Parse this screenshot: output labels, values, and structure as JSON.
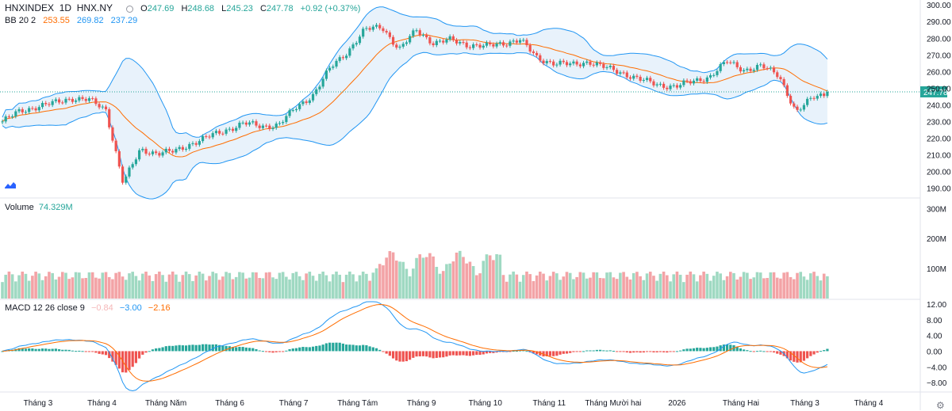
{
  "header": {
    "symbol": "HNXINDEX",
    "interval": "1D",
    "exchange": "HNX.NY",
    "open_label": "O",
    "open": "247.69",
    "high_label": "H",
    "high": "248.68",
    "low_label": "L",
    "low": "245.23",
    "close_label": "C",
    "close": "247.78",
    "change": "+0.92 (+0.37%)"
  },
  "bb": {
    "label": "BB 20 2",
    "basis": "253.55",
    "upper": "269.82",
    "lower": "237.29"
  },
  "volume": {
    "label": "Volume",
    "value": "74.329M"
  },
  "macd": {
    "label": "MACD 12 26 close 9",
    "hist": "−0.84",
    "macd": "−3.00",
    "signal": "−2.16"
  },
  "price_axis": [
    "300.00",
    "290.00",
    "280.00",
    "270.00",
    "260.00",
    "250.00",
    "240.00",
    "230.00",
    "220.00",
    "210.00",
    "200.00",
    "190.00"
  ],
  "last_price": "247.78",
  "volume_axis": [
    "300M",
    "200M",
    "100M"
  ],
  "macd_axis": [
    "12.00",
    "8.00",
    "4.00",
    "0.00",
    "−4.00",
    "−8.00"
  ],
  "time_axis": [
    "Tháng 3",
    "Tháng 4",
    "Tháng Năm",
    "Tháng 6",
    "Tháng 7",
    "Tháng Tám",
    "Tháng 9",
    "Tháng 10",
    "Tháng 11",
    "Tháng Mười hai",
    "2026",
    "Tháng Hai",
    "Tháng 3",
    "Tháng 4"
  ],
  "colors": {
    "up": "#26a69a",
    "down": "#ef5350",
    "vol_up": "#9fd9c2",
    "vol_down": "#f3a3a6",
    "bb_band": "#2196f3",
    "bb_basis": "#ff6d00",
    "bb_fill": "#e8f2fb",
    "macd_line": "#2196f3",
    "signal_line": "#ff6d00",
    "last_price_tag": "#26a69a"
  },
  "chart_data": {
    "type": "candlestick",
    "title": "HNXINDEX 1D HNX.NY",
    "ylim": [
      185,
      302
    ],
    "volume_ylim": [
      0,
      330
    ],
    "macd_ylim": [
      -10,
      13
    ],
    "anchors": [
      {
        "date": "Mar 2025",
        "close": 230
      },
      {
        "date": "Mar 2025",
        "close": 236
      },
      {
        "date": "Mar 2025",
        "close": 239
      },
      {
        "date": "Mar 2025",
        "close": 241
      },
      {
        "date": "Mar 2025",
        "close": 244
      },
      {
        "date": "Apr 2025",
        "close": 243
      },
      {
        "date": "Apr 2025",
        "close": 237
      },
      {
        "date": "Apr 2025",
        "close": 193
      },
      {
        "date": "Apr 2025",
        "close": 213
      },
      {
        "date": "Apr 2025",
        "close": 211
      },
      {
        "date": "May 2025",
        "close": 212
      },
      {
        "date": "May 2025",
        "close": 217
      },
      {
        "date": "May 2025",
        "close": 221
      },
      {
        "date": "Jun 2025",
        "close": 225
      },
      {
        "date": "Jun 2025",
        "close": 229
      },
      {
        "date": "Jun 2025",
        "close": 227
      },
      {
        "date": "Jul 2025",
        "close": 228
      },
      {
        "date": "Jul 2025",
        "close": 238
      },
      {
        "date": "Jul 2025",
        "close": 246
      },
      {
        "date": "Jul 2025",
        "close": 262
      },
      {
        "date": "Aug 2025",
        "close": 272
      },
      {
        "date": "Aug 2025",
        "close": 285
      },
      {
        "date": "Aug 2025",
        "close": 287
      },
      {
        "date": "Aug 2025",
        "close": 273
      },
      {
        "date": "Aug 2025",
        "close": 285
      },
      {
        "date": "Sep 2025",
        "close": 277
      },
      {
        "date": "Sep 2025",
        "close": 279
      },
      {
        "date": "Sep 2025",
        "close": 276
      },
      {
        "date": "Oct 2025",
        "close": 275
      },
      {
        "date": "Oct 2025",
        "close": 277
      },
      {
        "date": "Oct 2025",
        "close": 279
      },
      {
        "date": "Oct 2025",
        "close": 268
      },
      {
        "date": "Nov 2025",
        "close": 265
      },
      {
        "date": "Nov 2025",
        "close": 264
      },
      {
        "date": "Nov 2025",
        "close": 266
      },
      {
        "date": "Nov 2025",
        "close": 262
      },
      {
        "date": "Dec 2025",
        "close": 259
      },
      {
        "date": "Dec 2025",
        "close": 255
      },
      {
        "date": "Dec 2025",
        "close": 252
      },
      {
        "date": "Jan 2026",
        "close": 251
      },
      {
        "date": "Jan 2026",
        "close": 254
      },
      {
        "date": "Jan 2026",
        "close": 257
      },
      {
        "date": "Feb 2026",
        "close": 266
      },
      {
        "date": "Feb 2026",
        "close": 261
      },
      {
        "date": "Feb 2026",
        "close": 263
      },
      {
        "date": "Mar 2026",
        "close": 258
      },
      {
        "date": "Mar 2026",
        "close": 235
      },
      {
        "date": "Mar 2026",
        "close": 245
      },
      {
        "date": "Mar 2026",
        "close": 247.78
      }
    ],
    "last": {
      "open": 247.69,
      "high": 248.68,
      "low": 245.23,
      "close": 247.78,
      "change": 0.92,
      "change_pct": 0.37
    },
    "bollinger": {
      "period": 20,
      "mult": 2,
      "basis": 253.55,
      "upper": 269.82,
      "lower": 237.29
    },
    "volume_last_m": 74.329,
    "macd_params": {
      "fast": 12,
      "slow": 26,
      "signal": 9
    },
    "macd_last": {
      "hist": -0.84,
      "macd": -3.0,
      "signal": -2.16
    }
  }
}
